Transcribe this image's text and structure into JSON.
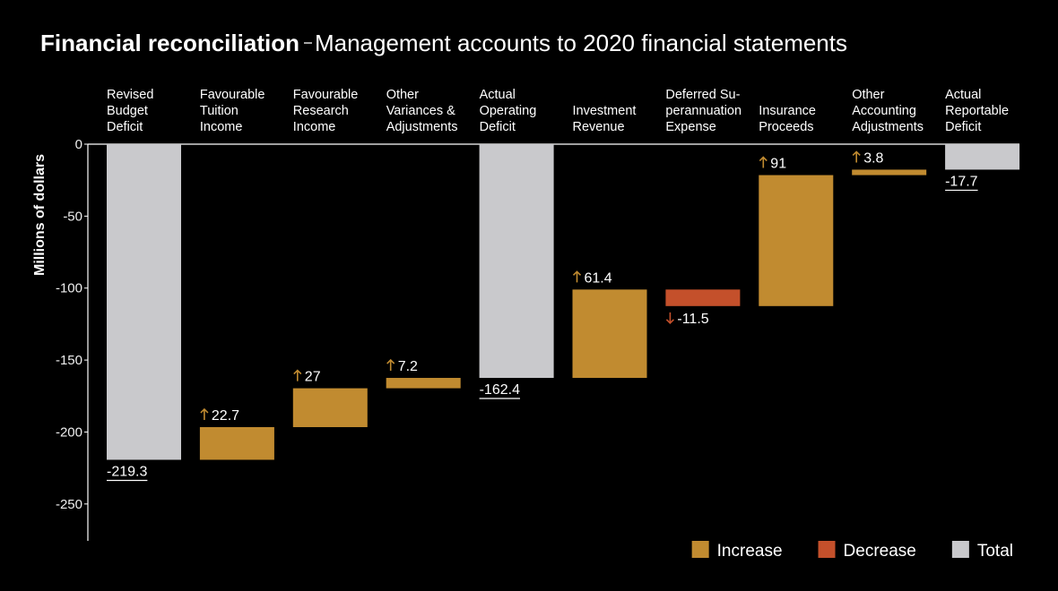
{
  "chart_data": {
    "type": "waterfall",
    "title": "Financial reconciliation",
    "subtitle": "Management accounts to 2020 financial statements",
    "y_label": "Millions of dollars",
    "categories": [
      [
        "Revised",
        "Budget",
        "Deficit"
      ],
      [
        "Favourable",
        "Tuition",
        "Income"
      ],
      [
        "Favourable",
        "Research",
        "Income"
      ],
      [
        "Other",
        "Variances &",
        "Adjustments"
      ],
      [
        "Actual",
        "Operating",
        "Deficit"
      ],
      [
        "Investment",
        "Revenue"
      ],
      [
        "Deferred Su-",
        "perannuation",
        "Expense"
      ],
      [
        "Insurance",
        "Proceeds"
      ],
      [
        "Other",
        "Accounting",
        "Adjustments"
      ],
      [
        "Actual",
        "Reportable",
        "Deficit"
      ]
    ],
    "values": [
      -219.3,
      22.7,
      27,
      7.2,
      -162.4,
      61.4,
      -11.5,
      91,
      3.8,
      -17.7
    ],
    "measure": [
      "total",
      "relative",
      "relative",
      "relative",
      "total",
      "relative",
      "relative",
      "relative",
      "relative",
      "total"
    ],
    "legend": [
      {
        "name": "Increase",
        "color": "#c18b30"
      },
      {
        "name": "Decrease",
        "color": "#c4502b"
      },
      {
        "name": "Total",
        "color": "#c9c9cc"
      }
    ],
    "ylim": [
      -275,
      0
    ],
    "yticks": [
      0,
      -50,
      -100,
      -150,
      -200,
      -250
    ]
  }
}
